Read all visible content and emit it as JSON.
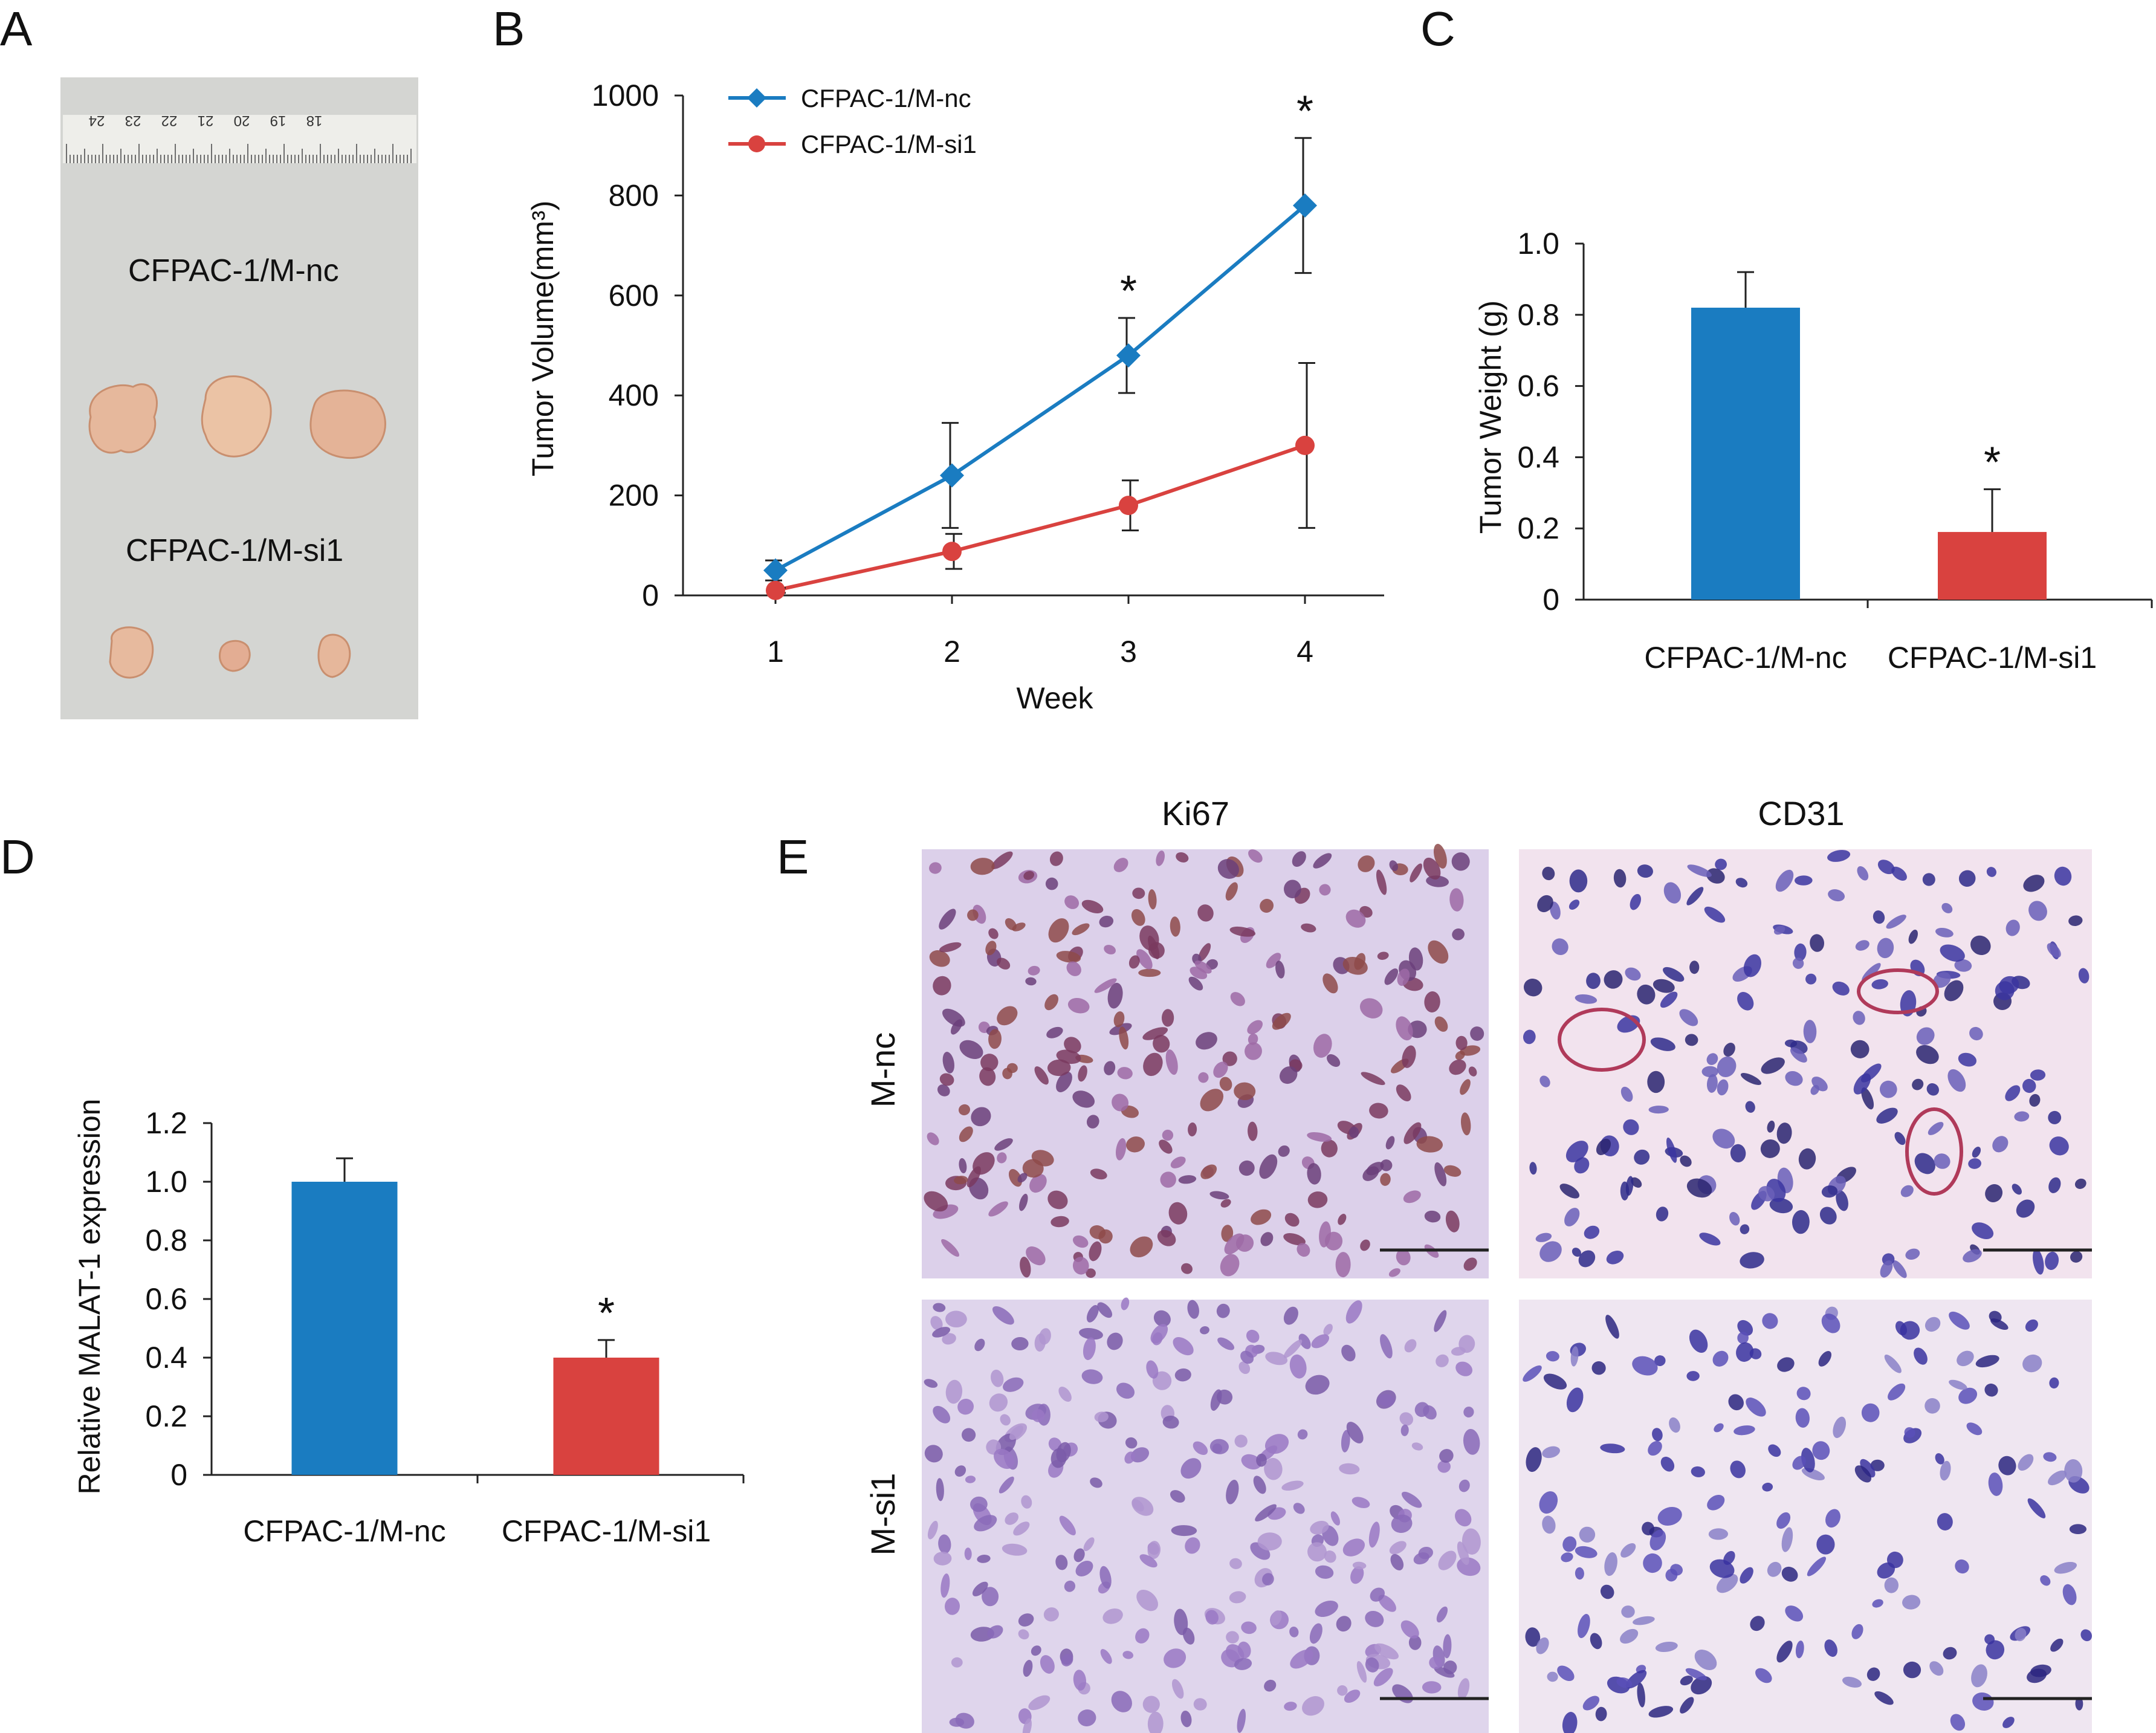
{
  "panels": {
    "A": {
      "letter": "A",
      "label_nc": "CFPAC-1/M-nc",
      "label_si": "CFPAC-1/M-si1",
      "ruler_numbers": [
        "24",
        "23",
        "22",
        "21",
        "20",
        "19",
        "18"
      ]
    },
    "B": {
      "letter": "B"
    },
    "C": {
      "letter": "C"
    },
    "D": {
      "letter": "D"
    },
    "E": {
      "letter": "E",
      "col_titles": [
        "Ki67",
        "CD31"
      ],
      "row_titles": [
        "M-nc",
        "M-si1"
      ]
    }
  },
  "colors": {
    "blue": "#1a7cc1",
    "red": "#d9423f",
    "tissue": "#e9b6a0"
  },
  "chart_data": [
    {
      "id": "B",
      "type": "line",
      "title": "",
      "xlabel": "Week",
      "ylabel": "Tumor Volume(mm³)",
      "x": [
        1,
        2,
        3,
        4
      ],
      "xticks": [
        "1",
        "2",
        "3",
        "4"
      ],
      "ylim": [
        0,
        1000
      ],
      "yticks": [
        "0",
        "200",
        "400",
        "600",
        "800",
        "1000"
      ],
      "series": [
        {
          "name": "CFPAC-1/M-nc",
          "color": "#1a7cc1",
          "marker": "diamond",
          "values": [
            50,
            240,
            480,
            780
          ],
          "errors": [
            20,
            105,
            75,
            135
          ]
        },
        {
          "name": "CFPAC-1/M-si1",
          "color": "#d9423f",
          "marker": "circle",
          "values": [
            10,
            88,
            180,
            300
          ],
          "errors": [
            5,
            35,
            50,
            165
          ]
        }
      ],
      "significance": [
        {
          "x": 3,
          "label": "*"
        },
        {
          "x": 4,
          "label": "*"
        }
      ],
      "legend_position": "top-left"
    },
    {
      "id": "C",
      "type": "bar",
      "ylabel": "Tumor Weight (g)",
      "categories": [
        "CFPAC-1/M-nc",
        "CFPAC-1/M-si1"
      ],
      "values": [
        0.82,
        0.19
      ],
      "errors": [
        0.1,
        0.12
      ],
      "colors": [
        "#1a7cc1",
        "#d9423f"
      ],
      "ylim": [
        0,
        1.0
      ],
      "yticks": [
        "0",
        "0.2",
        "0.4",
        "0.6",
        "0.8",
        "1.0"
      ],
      "significance": [
        "",
        "*"
      ]
    },
    {
      "id": "D",
      "type": "bar",
      "ylabel": "Relative MALAT-1 expression",
      "categories": [
        "CFPAC-1/M-nc",
        "CFPAC-1/M-si1"
      ],
      "values": [
        1.0,
        0.4
      ],
      "errors": [
        0.08,
        0.06
      ],
      "colors": [
        "#1a7cc1",
        "#d9423f"
      ],
      "ylim": [
        0,
        1.2
      ],
      "yticks": [
        "0",
        "0.2",
        "0.4",
        "0.6",
        "0.8",
        "1.0",
        "1.2"
      ],
      "significance": [
        "",
        "*"
      ]
    }
  ]
}
